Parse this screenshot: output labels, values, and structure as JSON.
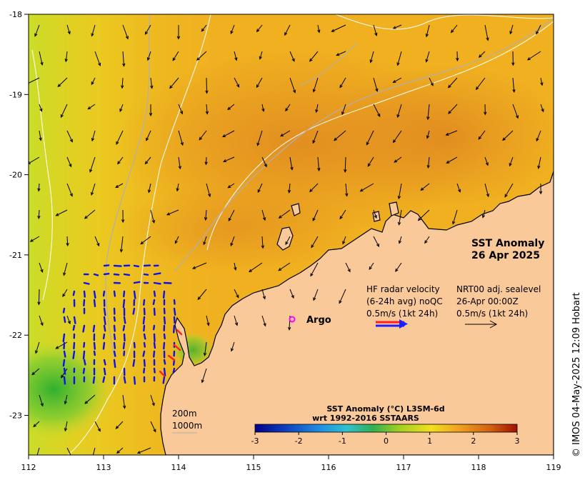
{
  "title": {
    "line1": "SST Anomaly",
    "line2": "26 Apr 2025"
  },
  "legend": {
    "hf_label1": "HF radar velocity",
    "hf_label2": "(6-24h avg) noQC",
    "hf_label3": "0.5m/s (1kt 24h)",
    "nrt_label1": "NRT00 adj. sealevel",
    "nrt_label2": "26-Apr 00:00Z",
    "nrt_label3": "0.5m/s (1kt 24h)",
    "hf_arrow_colors": [
      "#ff2020",
      "#2020ff"
    ],
    "nrt_arrow_color": "#000000"
  },
  "argo": {
    "marker": "o",
    "label": "Argo",
    "color": "#ff00ff"
  },
  "isobaths": {
    "label_200": "200m",
    "label_1000": "1000m"
  },
  "colorbar": {
    "title1": "SST Anomaly (°C) L3SM-6d",
    "title2": "wrt 1992-2016 SSTAARS",
    "ticks": [
      "-3",
      "-2",
      "-1",
      "0",
      "1",
      "2",
      "3"
    ],
    "range": [
      -3,
      3
    ],
    "colors": [
      "#00008b",
      "#1040c0",
      "#2090e0",
      "#30c0d0",
      "#30b050",
      "#a0d020",
      "#f0e020",
      "#f0a020",
      "#d06010",
      "#a01000"
    ]
  },
  "axes": {
    "x_ticks": [
      "112",
      "113",
      "114",
      "115",
      "116",
      "117",
      "118",
      "119"
    ],
    "y_ticks": [
      "-18",
      "-19",
      "-20",
      "-21",
      "-22",
      "-23"
    ]
  },
  "colors": {
    "land": "#f9c99a",
    "sea_warm": "#f0b020",
    "sea_hot": "#e08a20",
    "sea_mild": "#e9d820",
    "sea_cool": "#a0d830",
    "sea_cold": "#40b830"
  },
  "credit": "© IMOS 04-May-2025 12:09 Hobart"
}
